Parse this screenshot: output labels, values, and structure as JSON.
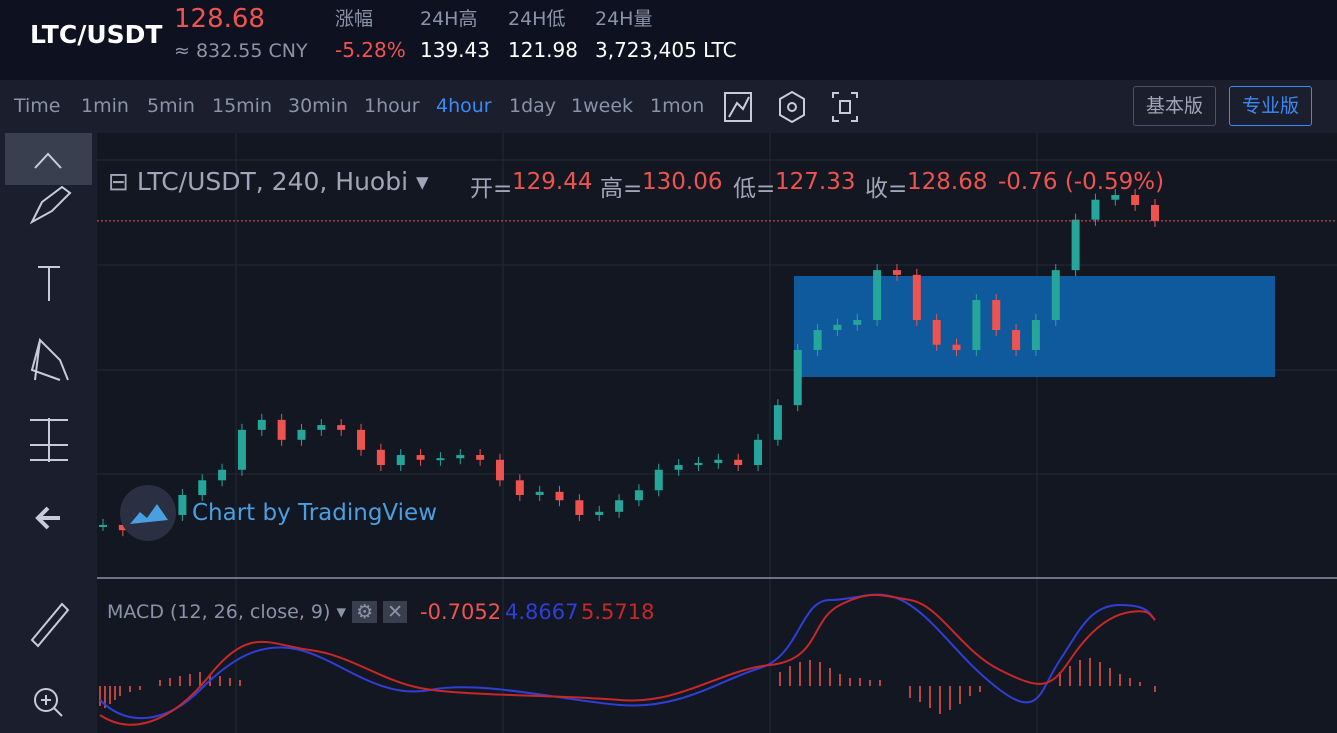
{
  "header": {
    "pair": "LTC/USDT",
    "price": "128.68",
    "cny": "≈ 832.55 CNY",
    "stats": [
      {
        "label": "涨幅",
        "value": "-5.28%"
      },
      {
        "label": "24H高",
        "value": "139.43"
      },
      {
        "label": "24H低",
        "value": "121.98"
      },
      {
        "label": "24H量",
        "value": "3,723,405 LTC"
      }
    ]
  },
  "toolbar": {
    "intervals": [
      "Time",
      "1min",
      "5min",
      "15min",
      "30min",
      "1hour",
      "4hour",
      "1day",
      "1week",
      "1mon"
    ],
    "active": "4hour",
    "modes": [
      "基本版",
      "专业版"
    ]
  },
  "legend": {
    "symbol": "LTC/USDT, 240, Huobi",
    "fields": [
      {
        "label": "开=",
        "value": "129.44"
      },
      {
        "label": "高=",
        "value": "130.06"
      },
      {
        "label": "低=",
        "value": "127.33"
      },
      {
        "label": "收=",
        "value": "128.68"
      }
    ],
    "change": "-0.76 (-0.59%)"
  },
  "watermark": "Chart by TradingView",
  "macd": {
    "title": "MACD (12, 26, close, 9)",
    "values": [
      "-0.7052",
      "4.8667",
      "5.5718"
    ]
  },
  "chart_data": {
    "type": "candlestick",
    "close": [
      70.8,
      69.8,
      73.6,
      72.7,
      76.5,
      79.3,
      81.3,
      88.9,
      90.8,
      87.0,
      88.9,
      89.8,
      88.9,
      85.1,
      82.2,
      84.1,
      83.2,
      83.5,
      84.1,
      83.2,
      79.3,
      76.5,
      77.1,
      75.5,
      72.7,
      73.3,
      75.5,
      77.4,
      81.3,
      82.2,
      82.6,
      83.2,
      82.2,
      87.0,
      93.6,
      104.1,
      107.9,
      108.9,
      109.8,
      119.3,
      118.4,
      109.8,
      105.1,
      104.1,
      113.6,
      107.9,
      104.1,
      109.8,
      119.3,
      128.9,
      132.7,
      133.6,
      131.7,
      128.68
    ],
    "up_color": "#26a69a",
    "down_color": "#ef5350",
    "ylim": [
      60.7,
      145.4
    ]
  }
}
